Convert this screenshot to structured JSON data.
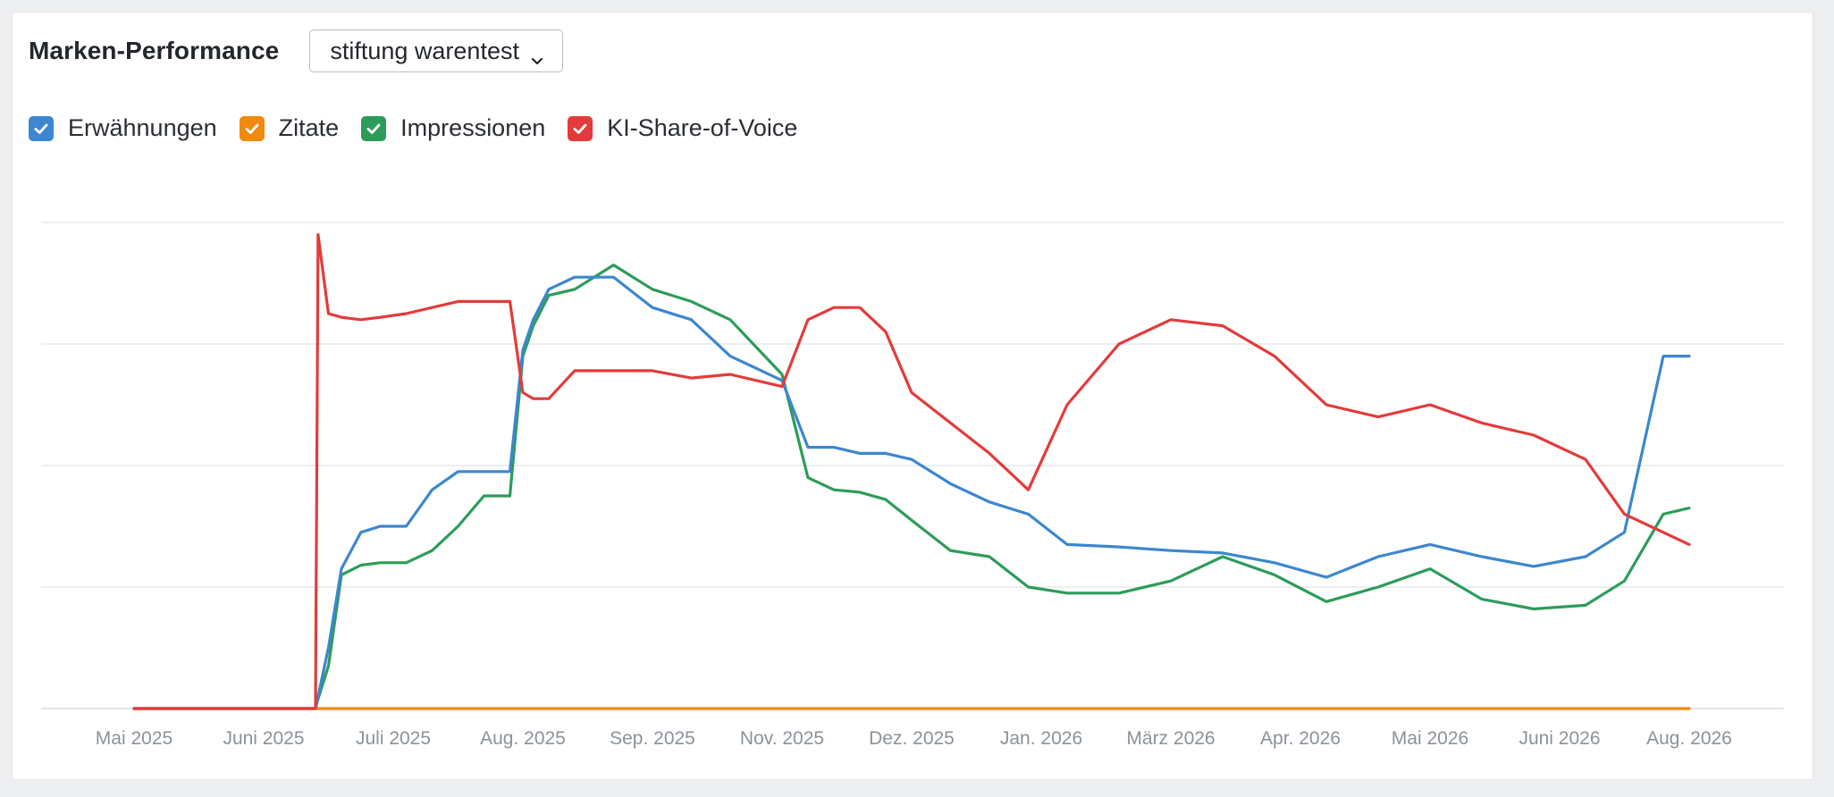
{
  "widget": {
    "title": "Marken-Performance",
    "brand_select": {
      "value": "stiftung warentest",
      "icon": "chevron-down-icon"
    }
  },
  "legend": [
    {
      "label": "Erwähnungen",
      "color": "#3c87cf",
      "checked": true,
      "icon": "checkmark-icon"
    },
    {
      "label": "Zitate",
      "color": "#f0890f",
      "checked": true,
      "icon": "checkmark-icon"
    },
    {
      "label": "Impressionen",
      "color": "#2d9c5a",
      "checked": true,
      "icon": "checkmark-icon"
    },
    {
      "label": "KI-Share-of-Voice",
      "color": "#e33b3b",
      "checked": true,
      "icon": "checkmark-icon"
    }
  ],
  "chart_data": {
    "type": "line",
    "grid": true,
    "legend_placement": "top-left",
    "x_tick_labels": [
      "Mai 2025",
      "Juni 2025",
      "Juli 2025",
      "Aug. 2025",
      "Sep. 2025",
      "Nov. 2025",
      "Dez. 2025",
      "Jan. 2026",
      "März 2026",
      "Apr. 2026",
      "Mai 2026",
      "Juni 2026",
      "Aug. 2026"
    ],
    "x_range": [
      "Mai 2025",
      "Aug. 2026"
    ],
    "y_range": [
      0,
      4
    ],
    "y_tick_labels_shown": false,
    "x": [
      0,
      1.4,
      1.42,
      1.5,
      1.6,
      1.75,
      1.9,
      2.1,
      2.3,
      2.5,
      2.7,
      2.9,
      3.0,
      3.08,
      3.2,
      3.4,
      3.7,
      4.0,
      4.3,
      4.6,
      5.0,
      5.2,
      5.4,
      5.6,
      5.8,
      6.0,
      6.3,
      6.6,
      6.9,
      7.2,
      7.6,
      8.0,
      8.4,
      8.8,
      9.2,
      9.6,
      10.0,
      10.4,
      10.8,
      11.2,
      11.5,
      11.8,
      12.0
    ],
    "series": [
      {
        "name": "Erwähnungen",
        "color": "#3c87cf",
        "values": [
          0,
          0,
          0.1,
          0.5,
          1.15,
          1.45,
          1.5,
          1.5,
          1.8,
          1.95,
          1.95,
          1.95,
          2.95,
          3.2,
          3.45,
          3.55,
          3.55,
          3.3,
          3.2,
          2.9,
          2.7,
          2.15,
          2.15,
          2.1,
          2.1,
          2.05,
          1.85,
          1.7,
          1.6,
          1.35,
          1.33,
          1.3,
          1.28,
          1.2,
          1.08,
          1.25,
          1.35,
          1.25,
          1.17,
          1.25,
          1.45,
          2.9,
          2.9
        ]
      },
      {
        "name": "Zitate",
        "color": "#f0890f",
        "values": [
          0,
          0,
          0,
          0,
          0,
          0,
          0,
          0,
          0,
          0,
          0,
          0,
          0,
          0,
          0,
          0,
          0,
          0,
          0,
          0,
          0,
          0,
          0,
          0,
          0,
          0,
          0,
          0,
          0,
          0,
          0,
          0,
          0,
          0,
          0,
          0,
          0,
          0,
          0,
          0,
          0,
          0,
          0
        ]
      },
      {
        "name": "Impressionen",
        "color": "#2d9c5a",
        "values": [
          0,
          0,
          0.08,
          0.35,
          1.1,
          1.18,
          1.2,
          1.2,
          1.3,
          1.5,
          1.75,
          1.75,
          2.9,
          3.15,
          3.4,
          3.45,
          3.65,
          3.45,
          3.35,
          3.2,
          2.75,
          1.9,
          1.8,
          1.78,
          1.72,
          1.55,
          1.3,
          1.25,
          1.0,
          0.95,
          0.95,
          1.05,
          1.25,
          1.1,
          0.88,
          1.0,
          1.15,
          0.9,
          0.82,
          0.85,
          1.05,
          1.6,
          1.65
        ]
      },
      {
        "name": "KI-Share-of-Voice",
        "color": "#e33b3b",
        "values": [
          0,
          0,
          3.9,
          3.25,
          3.22,
          3.2,
          3.22,
          3.25,
          3.3,
          3.35,
          3.35,
          3.35,
          2.6,
          2.55,
          2.55,
          2.78,
          2.78,
          2.78,
          2.72,
          2.75,
          2.65,
          3.2,
          3.3,
          3.3,
          3.1,
          2.6,
          2.35,
          2.1,
          1.8,
          2.5,
          3.0,
          3.2,
          3.15,
          2.9,
          2.5,
          2.4,
          2.5,
          2.35,
          2.25,
          2.05,
          1.6,
          1.45,
          1.35
        ]
      }
    ]
  }
}
